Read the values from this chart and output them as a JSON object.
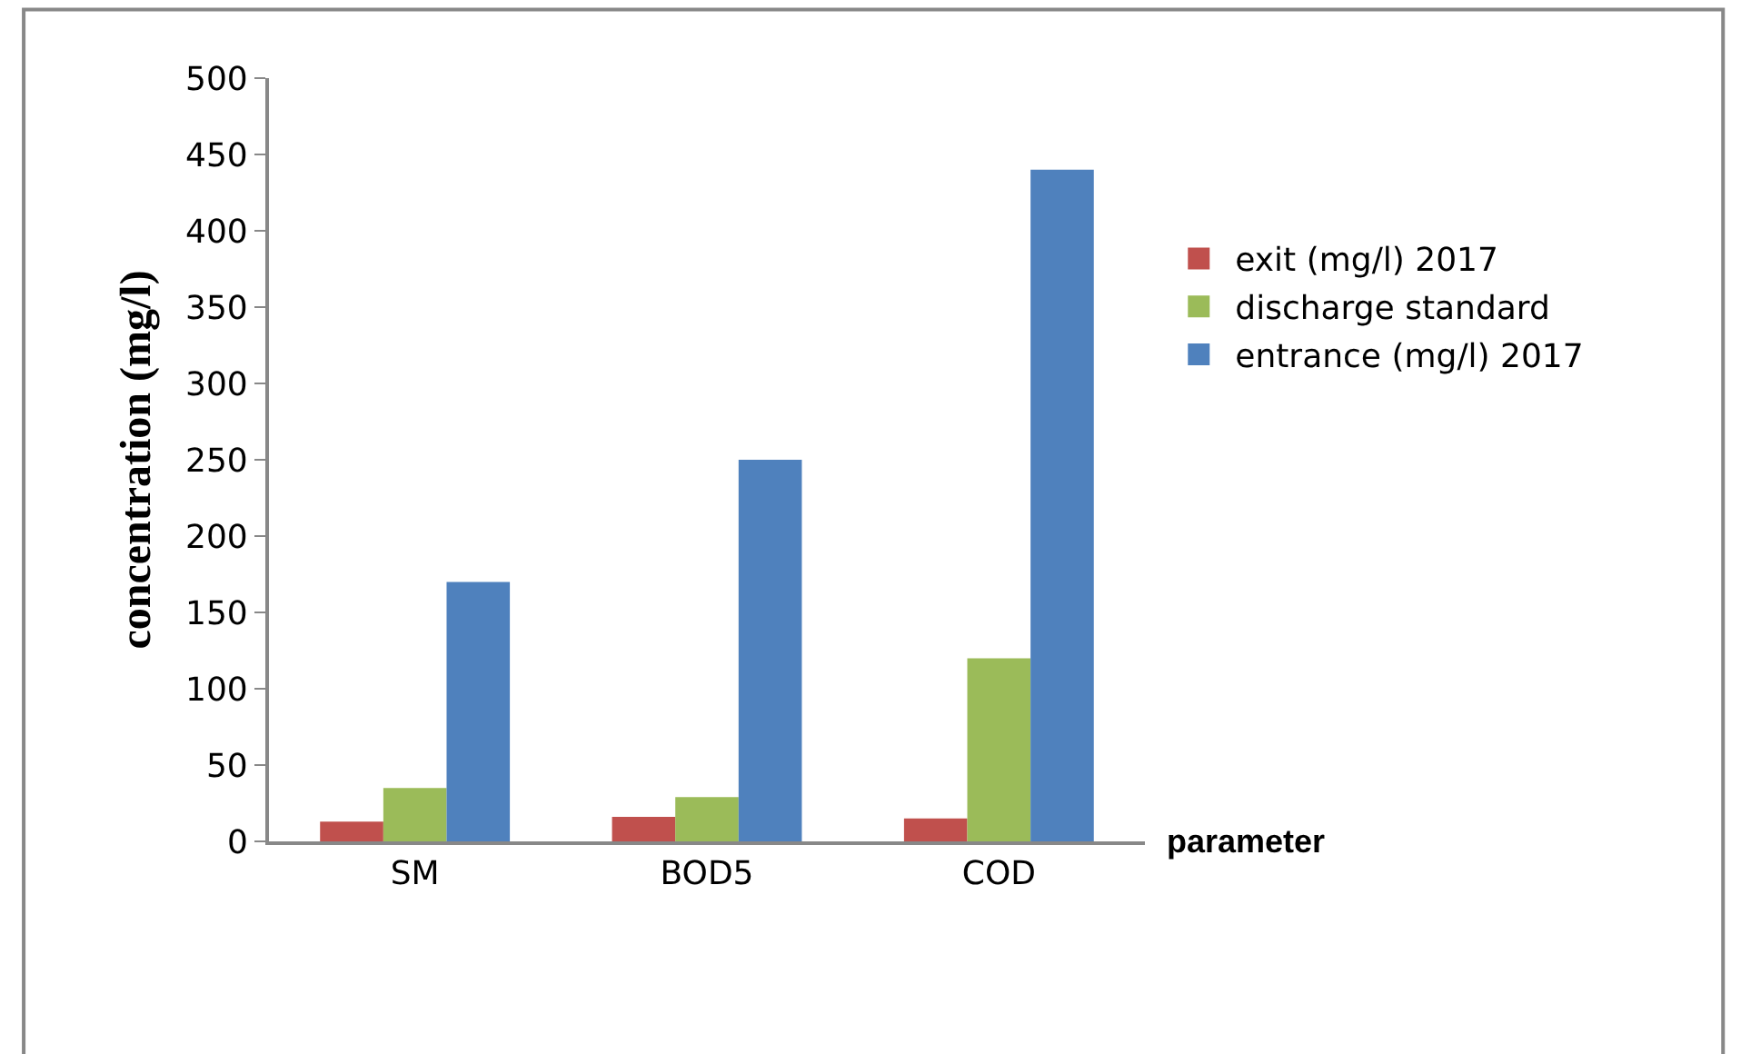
{
  "chart_data": {
    "type": "bar",
    "xlabel": "parameter",
    "ylabel": "concentration (mg/l)",
    "categories": [
      "SM",
      "BOD5",
      "COD"
    ],
    "series": [
      {
        "name": "exit (mg/l) 2017",
        "color": "#c0504d",
        "values": [
          13,
          16,
          15
        ]
      },
      {
        "name": "discharge standard",
        "color": "#9bbb59",
        "values": [
          35,
          29,
          120
        ]
      },
      {
        "name": "entrance (mg/l) 2017",
        "color": "#4f81bd",
        "values": [
          170,
          250,
          440
        ]
      }
    ],
    "ylim": [
      0,
      500
    ],
    "yticks": [
      0,
      50,
      100,
      150,
      200,
      250,
      300,
      350,
      400,
      450,
      500
    ],
    "legend": "right"
  }
}
